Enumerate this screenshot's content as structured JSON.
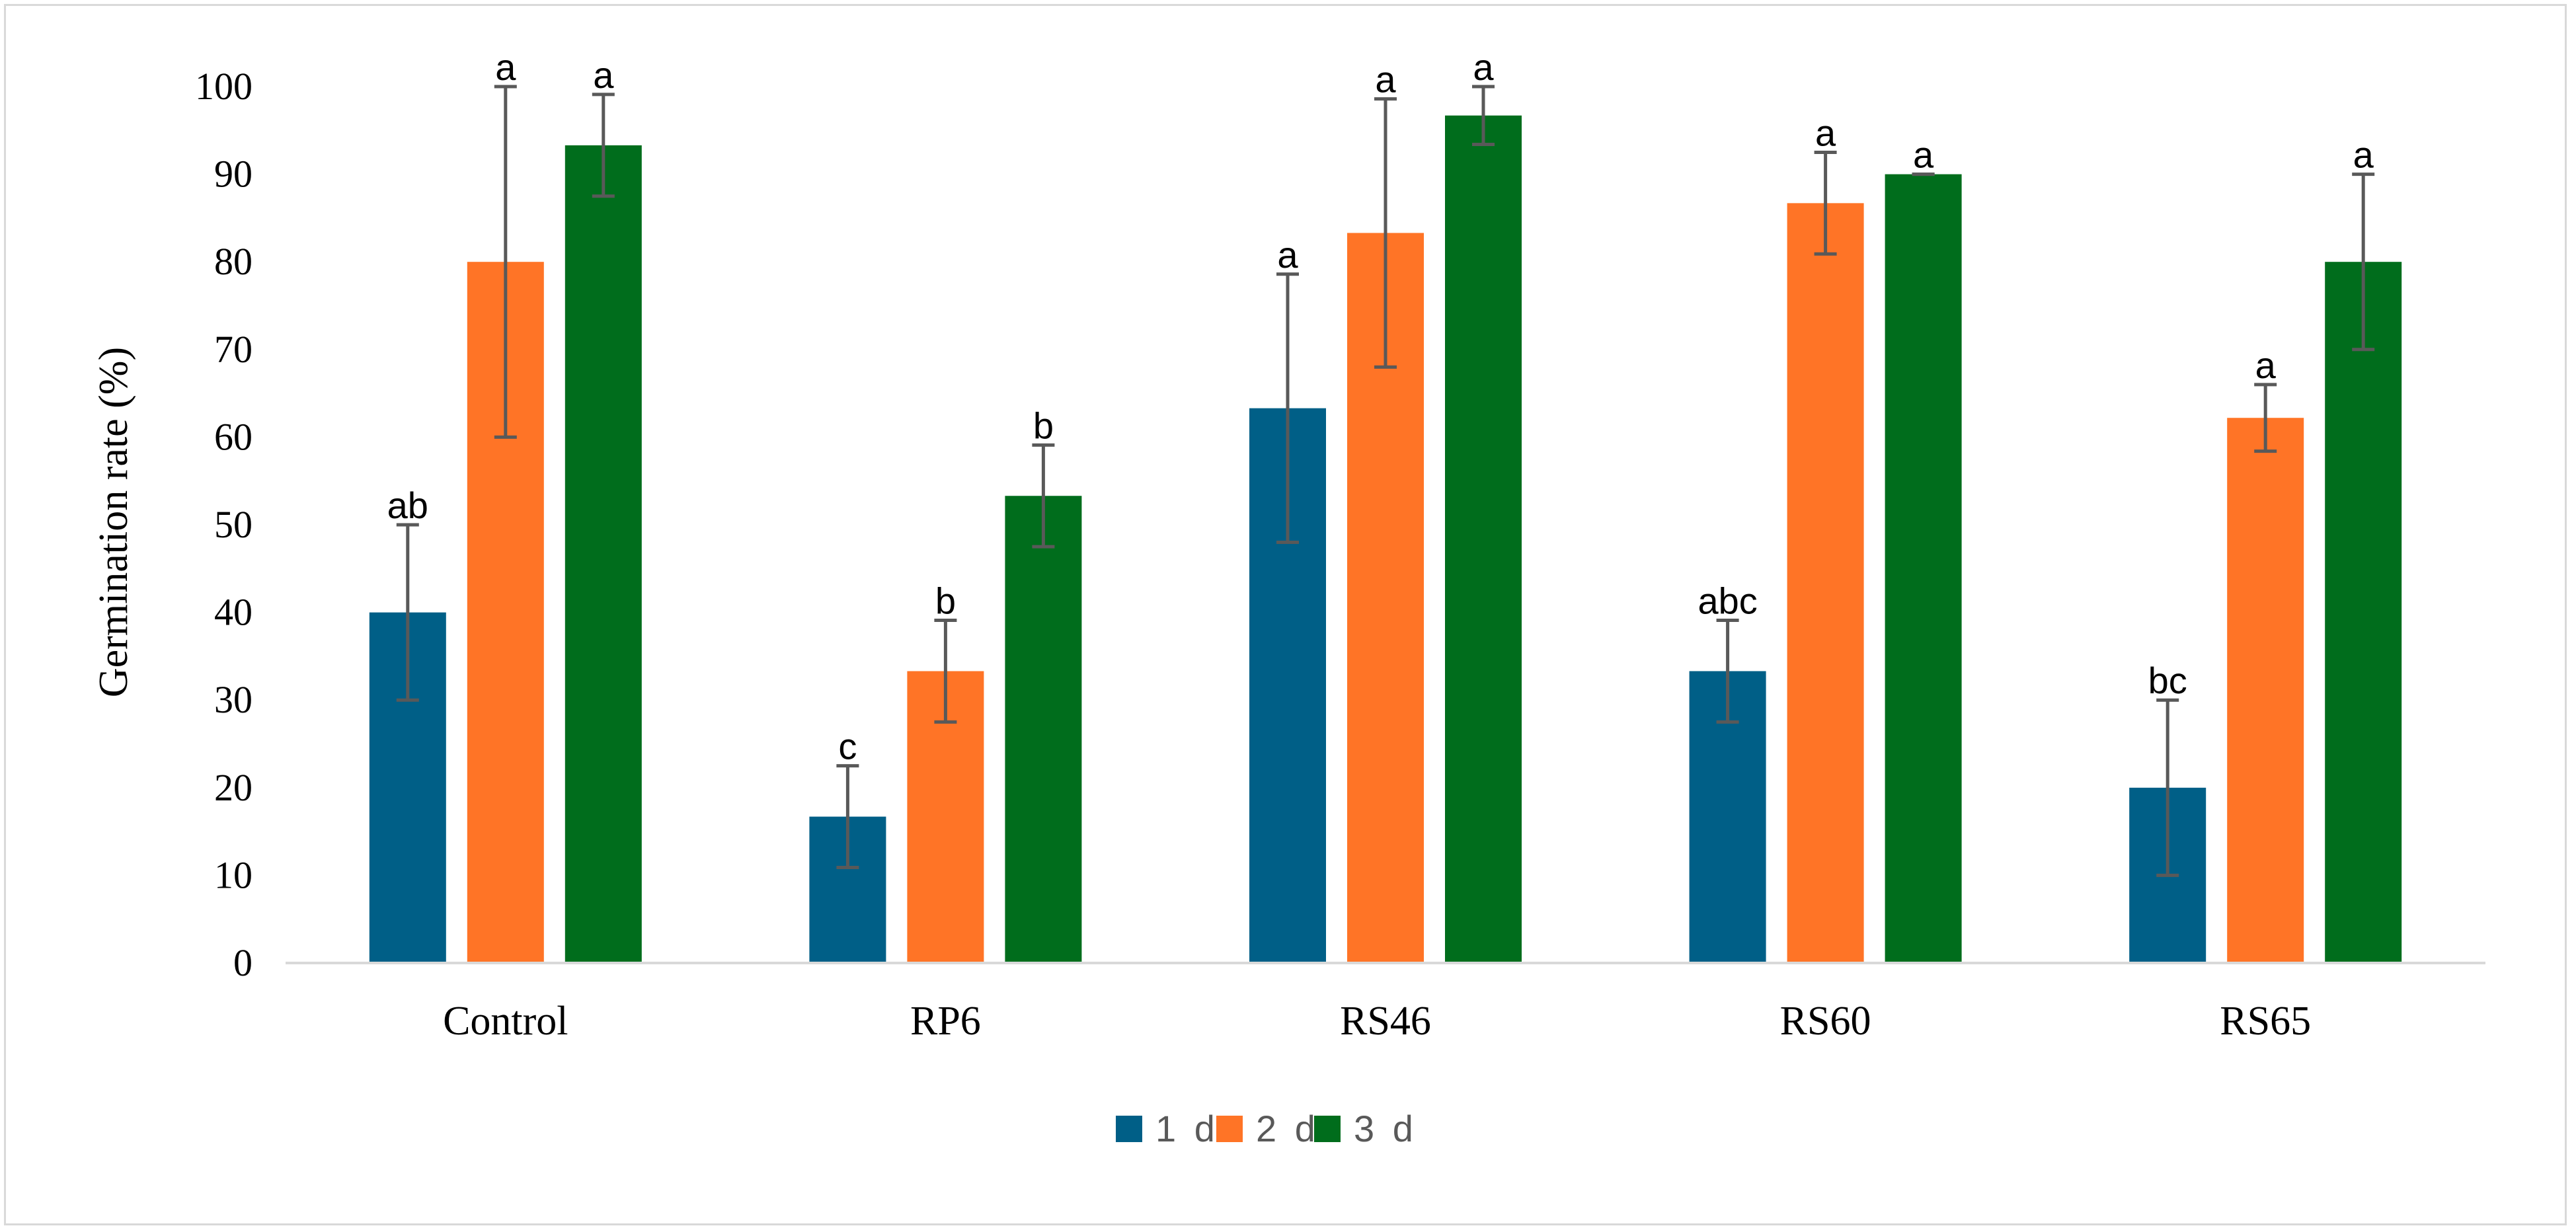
{
  "chart_data": {
    "type": "bar",
    "title": "",
    "xlabel": "",
    "ylabel": "Germination rate (%)",
    "ylim": [
      0,
      100
    ],
    "yticks": [
      0,
      10,
      20,
      30,
      40,
      50,
      60,
      70,
      80,
      90,
      100
    ],
    "grid": false,
    "legend_position": "bottom",
    "categories": [
      "Control",
      "RP6",
      "RS46",
      "RS60",
      "RS65"
    ],
    "series": [
      {
        "name": "1 d",
        "color": "#005f87",
        "values": [
          40,
          16.7,
          63.3,
          33.3,
          20
        ],
        "errors": [
          10,
          5.8,
          15.3,
          5.8,
          10
        ],
        "labels": [
          "ab",
          "c",
          "a",
          "abc",
          "bc"
        ]
      },
      {
        "name": "2 d",
        "color": "#ff7426",
        "values": [
          80,
          33.3,
          83.3,
          86.7,
          62.2
        ],
        "errors": [
          20,
          5.8,
          15.3,
          5.8,
          3.8
        ],
        "labels": [
          "a",
          "b",
          "a",
          "a",
          "a"
        ]
      },
      {
        "name": "3 d",
        "color": "#006d1c",
        "values": [
          93.3,
          53.3,
          96.7,
          90,
          80
        ],
        "errors": [
          5.8,
          5.8,
          3.3,
          0,
          10
        ],
        "labels": [
          "a",
          "b",
          "a",
          "a",
          "a"
        ]
      }
    ]
  }
}
